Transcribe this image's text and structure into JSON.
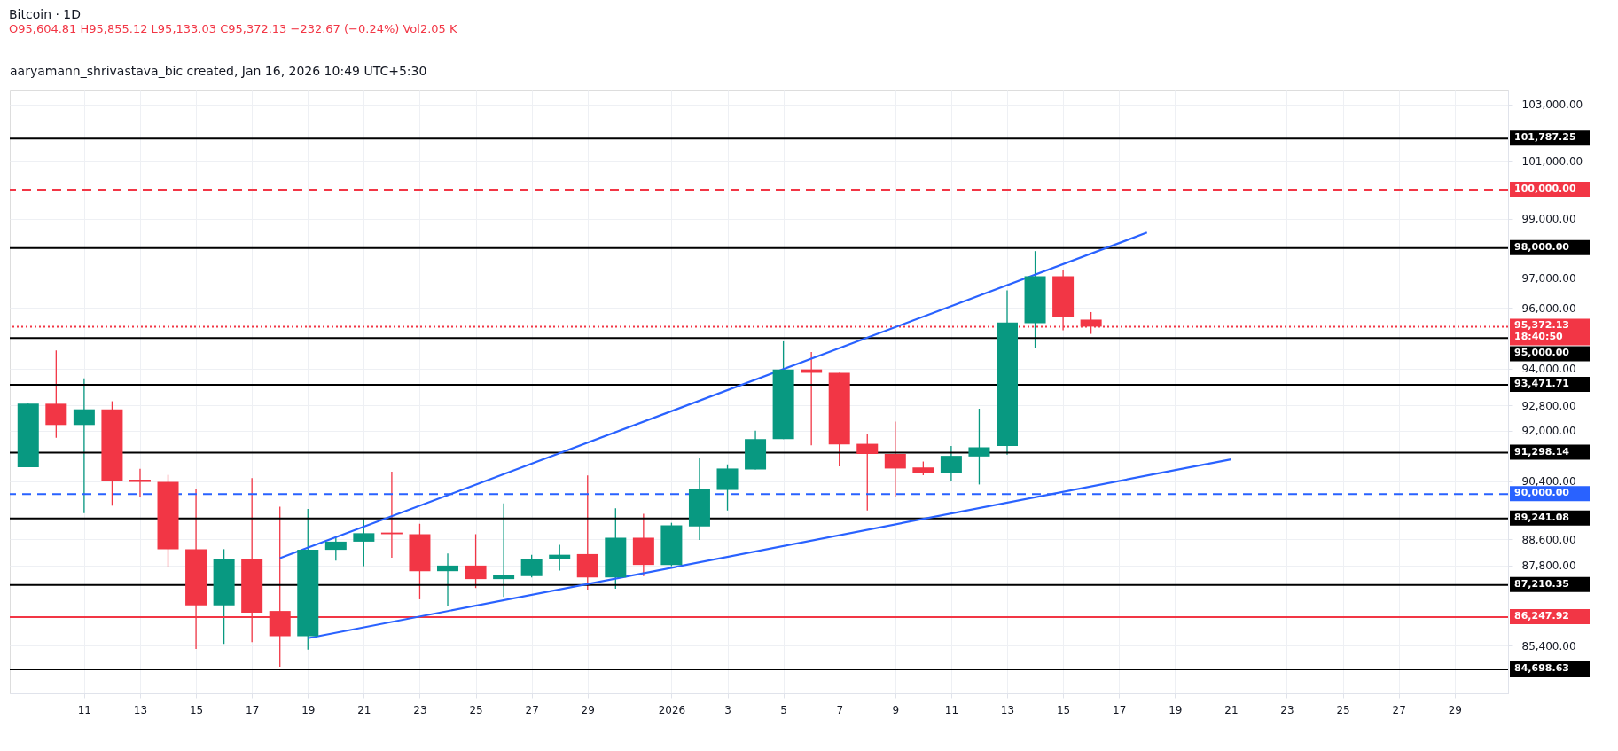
{
  "chart_data": {
    "type": "candlestick",
    "title": "Bitcoin · 1D",
    "subtitle": "O95,604.81  H95,855.12  L95,133.03  C95,372.13  −232.67 (−0.24%)  Vol2.05 K",
    "annotations": [
      "aaryamann_shrivastava_bic created, Jan 16, 2026 10:49 UTC+5:30"
    ],
    "x": [
      "2025-12-09",
      "2025-12-10",
      "2025-12-11",
      "2025-12-12",
      "2025-12-13",
      "2025-12-14",
      "2025-12-15",
      "2025-12-16",
      "2025-12-17",
      "2025-12-18",
      "2025-12-19",
      "2025-12-20",
      "2025-12-21",
      "2025-12-22",
      "2025-12-23",
      "2025-12-24",
      "2025-12-25",
      "2025-12-26",
      "2025-12-27",
      "2025-12-28",
      "2025-12-29",
      "2025-12-30",
      "2025-12-31",
      "2026-01-01",
      "2026-01-02",
      "2026-01-03",
      "2026-01-04",
      "2026-01-05",
      "2026-01-06",
      "2026-01-07",
      "2026-01-08",
      "2026-01-09",
      "2026-01-10",
      "2026-01-11",
      "2026-01-12",
      "2026-01-13",
      "2026-01-14",
      "2026-01-15",
      "2026-01-16"
    ],
    "ohlc": [
      [
        90840,
        92860,
        90840,
        92860
      ],
      [
        92860,
        94590,
        91770,
        92180
      ],
      [
        92180,
        93680,
        89410,
        92680
      ],
      [
        92680,
        92940,
        89640,
        90400
      ],
      [
        90450,
        90790,
        89920,
        90380
      ],
      [
        90380,
        90600,
        87750,
        88300
      ],
      [
        88300,
        90170,
        85300,
        86600
      ],
      [
        86600,
        88300,
        85450,
        88000
      ],
      [
        88000,
        90500,
        85500,
        86380
      ],
      [
        86430,
        89610,
        84780,
        85680
      ],
      [
        85680,
        89540,
        85280,
        88280
      ],
      [
        88280,
        88700,
        87950,
        88530
      ],
      [
        88530,
        89230,
        87780,
        88790
      ],
      [
        88810,
        90700,
        88040,
        88760
      ],
      [
        88760,
        89080,
        86780,
        87630
      ],
      [
        87630,
        88170,
        86580,
        87800
      ],
      [
        87800,
        88760,
        87120,
        87390
      ],
      [
        87390,
        89710,
        86850,
        87510
      ],
      [
        87480,
        88130,
        87440,
        88000
      ],
      [
        88000,
        88430,
        87650,
        88130
      ],
      [
        88150,
        90580,
        87070,
        87440
      ],
      [
        87440,
        89560,
        87100,
        88650
      ],
      [
        88650,
        89390,
        87480,
        87820
      ],
      [
        87820,
        89110,
        87780,
        89030
      ],
      [
        89000,
        91150,
        88580,
        90160
      ],
      [
        90130,
        90930,
        89490,
        90800
      ],
      [
        90770,
        92000,
        90770,
        91730
      ],
      [
        91730,
        94890,
        91730,
        93970
      ],
      [
        93970,
        94540,
        91530,
        93860
      ],
      [
        93860,
        93860,
        90870,
        91560
      ],
      [
        91580,
        91890,
        89490,
        91260
      ],
      [
        91260,
        92290,
        89900,
        90800
      ],
      [
        90830,
        91020,
        90590,
        90670
      ],
      [
        90670,
        91510,
        90400,
        91200
      ],
      [
        91180,
        92700,
        90300,
        91470
      ],
      [
        91510,
        96580,
        91240,
        95510
      ],
      [
        95490,
        97900,
        94680,
        97050
      ],
      [
        97050,
        97270,
        95250,
        95680
      ],
      [
        95604.81,
        95855.12,
        95133.03,
        95372.13
      ]
    ],
    "colors": [
      "#089981",
      "#f23645",
      "#089981",
      "#f23645",
      "#f23645",
      "#f23645",
      "#f23645",
      "#089981",
      "#f23645",
      "#f23645",
      "#089981",
      "#089981",
      "#089981",
      "#f23645",
      "#f23645",
      "#089981",
      "#f23645",
      "#089981",
      "#089981",
      "#089981",
      "#f23645",
      "#089981",
      "#f23645",
      "#089981",
      "#089981",
      "#089981",
      "#089981",
      "#089981",
      "#f23645",
      "#f23645",
      "#f23645",
      "#f23645",
      "#f23645",
      "#089981",
      "#089981",
      "#089981",
      "#089981",
      "#f23645",
      "#f23645"
    ],
    "series": [
      {
        "type": "line",
        "color": "#2962ff",
        "x": [
          "2025-12-18",
          "2026-01-18"
        ],
        "values": [
          88025,
          98530
        ]
      },
      {
        "type": "line",
        "color": "#2962ff",
        "x": [
          "2025-12-19",
          "2026-01-21"
        ],
        "values": [
          85620,
          91090
        ]
      }
    ],
    "ref_lines": [
      {
        "axis": "y",
        "value": 101787.25,
        "label": "101,787.25",
        "color": "#000000"
      },
      {
        "axis": "y",
        "value": 100000,
        "label": "100,000.00",
        "color": "#f23645",
        "line_style": "dashed"
      },
      {
        "axis": "y",
        "value": 98000,
        "label": "98,000.00",
        "color": "#000000"
      },
      {
        "axis": "y",
        "value": 95372.13,
        "label": "95,372.13\n18:40:50",
        "color": "#f23645",
        "line_style": "dotted"
      },
      {
        "axis": "y",
        "value": 95000,
        "label": "95,000.00",
        "color": "#000000"
      },
      {
        "axis": "y",
        "value": 93471.71,
        "label": "93,471.71",
        "color": "#000000"
      },
      {
        "axis": "y",
        "value": 91298.14,
        "label": "91,298.14",
        "color": "#000000"
      },
      {
        "axis": "y",
        "value": 90000,
        "label": "90,000.00",
        "color": "#2962ff",
        "line_style": "dashed"
      },
      {
        "axis": "y",
        "value": 89241.08,
        "label": "89,241.08",
        "color": "#000000"
      },
      {
        "axis": "y",
        "value": 87210.35,
        "label": "87,210.35",
        "color": "#000000"
      },
      {
        "axis": "y",
        "value": 86247.92,
        "label": "86,247.92",
        "color": "#f23645"
      },
      {
        "axis": "y",
        "value": 84698.63,
        "label": "84,698.63",
        "color": "#000000"
      }
    ],
    "xlim": [
      "2025-12-08T12:00",
      "2026-01-30T18:00"
    ],
    "xticks": [
      {
        "value": "2025-12-11",
        "label": "11"
      },
      {
        "value": "2025-12-13",
        "label": "13"
      },
      {
        "value": "2025-12-15",
        "label": "15"
      },
      {
        "value": "2025-12-17",
        "label": "17"
      },
      {
        "value": "2025-12-19",
        "label": "19"
      },
      {
        "value": "2025-12-21",
        "label": "21"
      },
      {
        "value": "2025-12-23",
        "label": "23"
      },
      {
        "value": "2025-12-25",
        "label": "25"
      },
      {
        "value": "2025-12-27",
        "label": "27"
      },
      {
        "value": "2025-12-29",
        "label": "29"
      },
      {
        "value": "2026-01-01",
        "label": "2026"
      },
      {
        "value": "2026-01-03",
        "label": "3"
      },
      {
        "value": "2026-01-05",
        "label": "5"
      },
      {
        "value": "2026-01-07",
        "label": "7"
      },
      {
        "value": "2026-01-09",
        "label": "9"
      },
      {
        "value": "2026-01-11",
        "label": "11"
      },
      {
        "value": "2026-01-13",
        "label": "13"
      },
      {
        "value": "2026-01-15",
        "label": "15"
      },
      {
        "value": "2026-01-17",
        "label": "17"
      },
      {
        "value": "2026-01-19",
        "label": "19"
      },
      {
        "value": "2026-01-21",
        "label": "21"
      },
      {
        "value": "2026-01-23",
        "label": "23"
      },
      {
        "value": "2026-01-25",
        "label": "25"
      },
      {
        "value": "2026-01-27",
        "label": "27"
      },
      {
        "value": "2026-01-29",
        "label": "29"
      }
    ],
    "ylim": [
      84000,
      103500
    ],
    "yticks": [
      {
        "value": 103000,
        "label": "103,000.00"
      },
      {
        "value": 101000,
        "label": "101,000.00"
      },
      {
        "value": 99000,
        "label": "99,000.00"
      },
      {
        "value": 97000,
        "label": "97,000.00"
      },
      {
        "value": 96000,
        "label": "96,000.00"
      },
      {
        "value": 94000,
        "label": "94,000.00"
      },
      {
        "value": 92800,
        "label": "92,800.00"
      },
      {
        "value": 92000,
        "label": "92,000.00"
      },
      {
        "value": 90400,
        "label": "90,400.00"
      },
      {
        "value": 88600,
        "label": "88,600.00"
      },
      {
        "value": 87800,
        "label": "87,800.00"
      },
      {
        "value": 85400,
        "label": "85,400.00"
      }
    ],
    "log": true,
    "grid": true
  }
}
